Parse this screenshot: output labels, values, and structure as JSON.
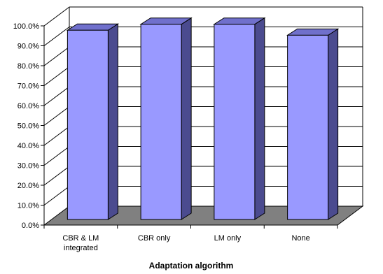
{
  "chart_data": {
    "type": "bar",
    "categories": [
      [
        "CBR & LM",
        "integrated"
      ],
      [
        "CBR only"
      ],
      [
        "LM only"
      ],
      [
        "None"
      ]
    ],
    "values": [
      0.95,
      0.98,
      0.98,
      0.925
    ],
    "xlabel": "Adaptation algorithm",
    "ylabel": "",
    "ylim": [
      0,
      1
    ],
    "yticks": [
      "0.0%",
      "10.0%",
      "20.0%",
      "30.0%",
      "40.0%",
      "50.0%",
      "60.0%",
      "70.0%",
      "80.0%",
      "90.0%",
      "100.0%"
    ],
    "grid": true,
    "style": "3d-bar",
    "colors": {
      "bar_front": "#9999ff",
      "bar_side": "#4b4b8f",
      "bar_top": "#7070cc",
      "floor": "#808080",
      "grid": "#000000"
    }
  }
}
